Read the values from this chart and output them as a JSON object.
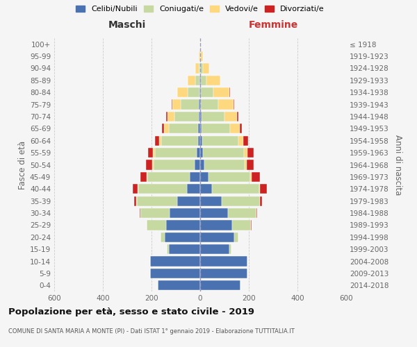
{
  "age_groups": [
    "0-4",
    "5-9",
    "10-14",
    "15-19",
    "20-24",
    "25-29",
    "30-34",
    "35-39",
    "40-44",
    "45-49",
    "50-54",
    "55-59",
    "60-64",
    "65-69",
    "70-74",
    "75-79",
    "80-84",
    "85-89",
    "90-94",
    "95-99",
    "100+"
  ],
  "birth_years": [
    "2014-2018",
    "2009-2013",
    "2004-2008",
    "1999-2003",
    "1994-1998",
    "1989-1993",
    "1984-1988",
    "1979-1983",
    "1974-1978",
    "1969-1973",
    "1964-1968",
    "1959-1963",
    "1954-1958",
    "1949-1953",
    "1944-1948",
    "1939-1943",
    "1934-1938",
    "1929-1933",
    "1924-1928",
    "1919-1923",
    "≤ 1918"
  ],
  "colors": {
    "celibi": "#4b72b0",
    "coniugati": "#c5d9a0",
    "vedovi": "#fdd87e",
    "divorziati": "#cc2222",
    "background": "#f5f5f5",
    "grid": "#cccccc",
    "center_line": "#9999bb"
  },
  "males": {
    "celibi": [
      175,
      205,
      205,
      130,
      145,
      140,
      125,
      95,
      55,
      42,
      22,
      15,
      10,
      8,
      7,
      5,
      3,
      2,
      1,
      0,
      0
    ],
    "coniugati": [
      0,
      0,
      0,
      8,
      18,
      80,
      120,
      165,
      200,
      175,
      170,
      170,
      150,
      120,
      100,
      75,
      48,
      18,
      6,
      1,
      0
    ],
    "vedovi": [
      0,
      0,
      0,
      0,
      0,
      0,
      0,
      2,
      2,
      2,
      5,
      8,
      10,
      20,
      28,
      33,
      42,
      32,
      14,
      4,
      0
    ],
    "divorziati": [
      0,
      0,
      0,
      0,
      0,
      0,
      5,
      10,
      20,
      28,
      25,
      20,
      15,
      10,
      5,
      5,
      2,
      0,
      0,
      0,
      0
    ]
  },
  "females": {
    "nubili": [
      165,
      195,
      195,
      120,
      140,
      130,
      115,
      88,
      48,
      35,
      18,
      12,
      8,
      6,
      5,
      4,
      3,
      2,
      1,
      0,
      0
    ],
    "coniugate": [
      0,
      0,
      0,
      8,
      18,
      78,
      115,
      158,
      195,
      172,
      165,
      168,
      148,
      118,
      95,
      70,
      50,
      25,
      10,
      2,
      0
    ],
    "vedove": [
      0,
      0,
      0,
      0,
      0,
      0,
      0,
      1,
      2,
      4,
      8,
      15,
      22,
      38,
      52,
      62,
      68,
      55,
      25,
      8,
      2
    ],
    "divorziate": [
      0,
      0,
      0,
      0,
      0,
      3,
      5,
      8,
      28,
      35,
      30,
      25,
      20,
      8,
      5,
      3,
      2,
      0,
      0,
      0,
      0
    ]
  },
  "xlim": 600,
  "title": "Popolazione per età, sesso e stato civile - 2019",
  "subtitle": "COMUNE DI SANTA MARIA A MONTE (PI) - Dati ISTAT 1° gennaio 2019 - Elaborazione TUTTITALIA.IT",
  "xlabel_left": "Maschi",
  "xlabel_right": "Femmine",
  "ylabel_left": "Fasce di età",
  "ylabel_right": "Anni di nascita",
  "legend_labels": [
    "Celibi/Nubili",
    "Coniugati/e",
    "Vedovi/e",
    "Divorziati/e"
  ]
}
